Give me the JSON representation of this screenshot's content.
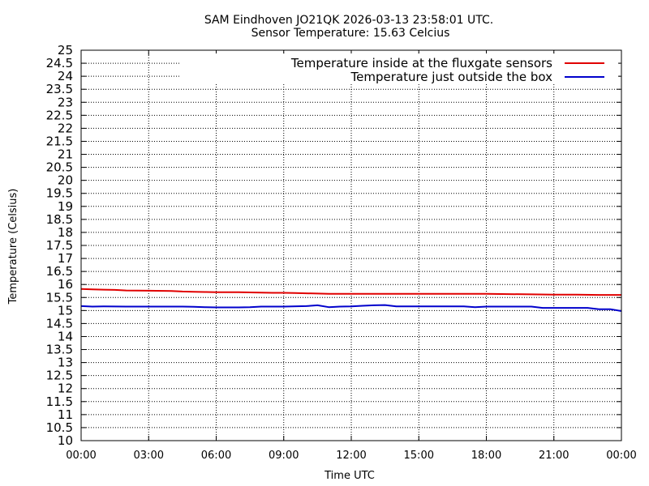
{
  "chart_data": {
    "type": "line",
    "title": "SAM Eindhoven JO21QK 2026-03-13 23:58:01 UTC.",
    "subtitle": "Sensor Temperature: 15.63 Celcius",
    "xlabel": "Time UTC",
    "ylabel": "Temperature (Celsius)",
    "xlim": [
      "00:00",
      "24:00"
    ],
    "ylim": [
      10,
      25
    ],
    "x_ticks": [
      "00:00",
      "03:00",
      "06:00",
      "09:00",
      "12:00",
      "15:00",
      "18:00",
      "21:00",
      "00:00"
    ],
    "y_ticks": [
      "10",
      "10.5",
      "11",
      "11.5",
      "12",
      "12.5",
      "13",
      "13.5",
      "14",
      "14.5",
      "15",
      "15.5",
      "16",
      "16.5",
      "17",
      "17.5",
      "18",
      "18.5",
      "19",
      "19.5",
      "20",
      "20.5",
      "21",
      "21.5",
      "22",
      "22.5",
      "23",
      "23.5",
      "24",
      "24.5",
      "25"
    ],
    "grid": true,
    "legend_position": "top-right",
    "series": [
      {
        "name": "Temperature inside at the fluxgate sensors",
        "color": "#e00000",
        "x": [
          "00:00",
          "00:30",
          "01:00",
          "01:30",
          "02:00",
          "03:00",
          "04:00",
          "04:30",
          "05:00",
          "05:30",
          "06:00",
          "07:00",
          "08:00",
          "08:30",
          "09:00",
          "09:30",
          "10:00",
          "10:30",
          "11:00",
          "12:00",
          "13:00",
          "14:00",
          "15:00",
          "16:00",
          "17:00",
          "18:00",
          "19:00",
          "20:00",
          "21:00",
          "22:00",
          "23:00",
          "24:00"
        ],
        "y": [
          15.83,
          15.81,
          15.8,
          15.79,
          15.77,
          15.76,
          15.75,
          15.73,
          15.72,
          15.71,
          15.7,
          15.7,
          15.69,
          15.68,
          15.68,
          15.67,
          15.66,
          15.65,
          15.64,
          15.64,
          15.64,
          15.64,
          15.64,
          15.64,
          15.64,
          15.64,
          15.63,
          15.62,
          15.61,
          15.61,
          15.6,
          15.6
        ]
      },
      {
        "name": "Temperature just outside the box",
        "color": "#0000cc",
        "x": [
          "00:00",
          "00:30",
          "01:00",
          "02:00",
          "03:00",
          "04:00",
          "04:30",
          "05:00",
          "05:30",
          "06:00",
          "07:00",
          "07:30",
          "08:00",
          "09:00",
          "10:00",
          "10:30",
          "11:00",
          "11:30",
          "12:00",
          "12:30",
          "13:00",
          "13:30",
          "14:00",
          "15:00",
          "16:00",
          "17:00",
          "17:30",
          "18:00",
          "19:00",
          "20:00",
          "20:30",
          "21:00",
          "22:00",
          "22:30",
          "23:00",
          "23:30",
          "24:00"
        ],
        "y": [
          15.17,
          15.15,
          15.16,
          15.15,
          15.15,
          15.15,
          15.15,
          15.14,
          15.13,
          15.12,
          15.12,
          15.13,
          15.15,
          15.15,
          15.17,
          15.2,
          15.13,
          15.15,
          15.16,
          15.18,
          15.2,
          15.21,
          15.16,
          15.16,
          15.16,
          15.16,
          15.13,
          15.15,
          15.15,
          15.15,
          15.1,
          15.1,
          15.1,
          15.1,
          15.05,
          15.05,
          14.98
        ]
      }
    ]
  }
}
